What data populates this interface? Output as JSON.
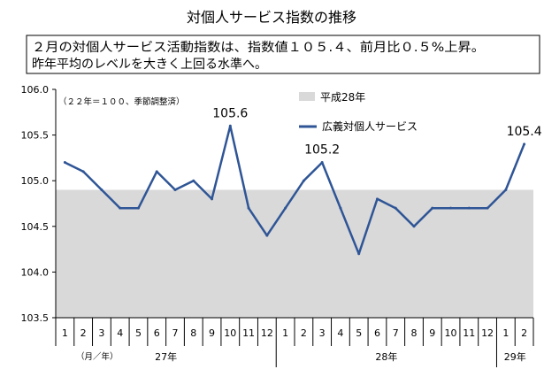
{
  "chart_data": {
    "type": "line",
    "title": "対個人サービス指数の推移",
    "note_lines": [
      "２月の対個人サービス活動指数は、指数値１０５.４、前月比０.５%上昇。",
      "昨年平均のレベルを大きく上回る水準へ。"
    ],
    "base_note": "（２２年＝１００、季節調整済）",
    "unit_label": "（月／年）",
    "months": [
      "1",
      "2",
      "3",
      "4",
      "5",
      "6",
      "7",
      "8",
      "9",
      "10",
      "11",
      "12",
      "1",
      "2",
      "3",
      "4",
      "5",
      "6",
      "7",
      "8",
      "9",
      "10",
      "11",
      "12",
      "1",
      "2"
    ],
    "years": [
      {
        "label": "27年",
        "start": 0,
        "end": 12
      },
      {
        "label": "28年",
        "start": 12,
        "end": 24
      },
      {
        "label": "29年",
        "start": 24,
        "end": 26
      }
    ],
    "ylim": [
      103.5,
      106.0
    ],
    "yticks": [
      "106.0",
      "105.5",
      "105.0",
      "104.5",
      "104.0",
      "103.5"
    ],
    "series": [
      {
        "name": "広義対個人サービス",
        "color": "#2f5596",
        "values": [
          105.2,
          105.1,
          104.9,
          104.7,
          104.7,
          105.1,
          104.9,
          105.0,
          104.8,
          105.6,
          104.7,
          104.4,
          104.7,
          105.0,
          105.2,
          104.7,
          104.2,
          104.8,
          104.7,
          104.5,
          104.7,
          104.7,
          104.7,
          104.7,
          104.9,
          105.4
        ]
      }
    ],
    "band": {
      "name": "平成28年",
      "value": 104.9,
      "color": "#d9d9d9"
    },
    "data_labels": [
      {
        "index": 9,
        "text": "105.6"
      },
      {
        "index": 14,
        "text": "105.2"
      },
      {
        "index": 25,
        "text": "105.4"
      }
    ]
  }
}
